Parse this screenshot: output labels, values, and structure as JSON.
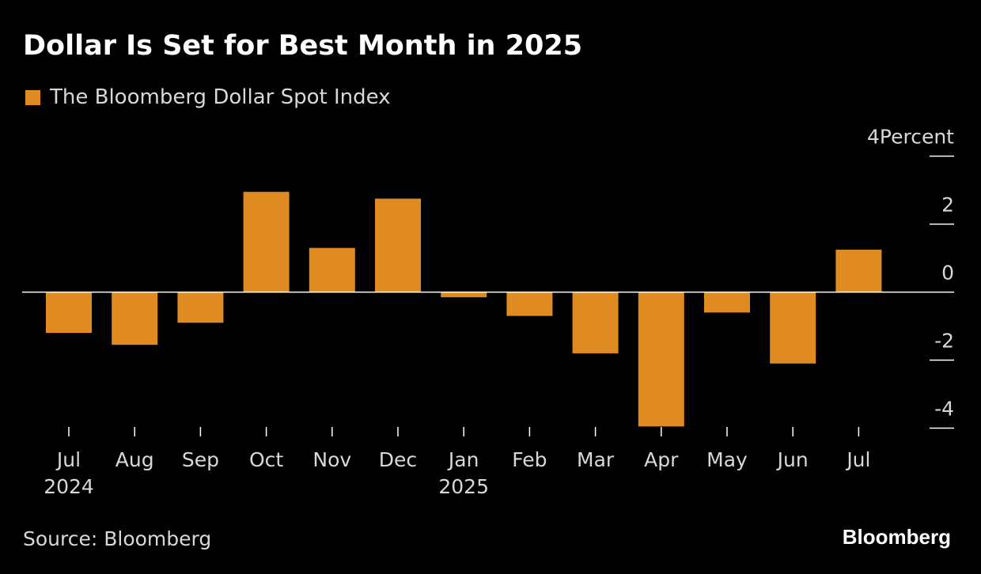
{
  "title": "Dollar Is Set for Best Month in 2025",
  "source": "Source: Bloomberg",
  "brand": "Bloomberg",
  "colors": {
    "bar": "#e08a22",
    "background": "#000000",
    "text": "#ffffff",
    "axis": "#ffffff"
  },
  "chart_data": {
    "type": "bar",
    "legend": [
      "The Bloomberg Dollar Spot Index"
    ],
    "categories": [
      "Jul",
      "Aug",
      "Sep",
      "Oct",
      "Nov",
      "Dec",
      "Jan",
      "Feb",
      "Mar",
      "Apr",
      "May",
      "Jun",
      "Jul"
    ],
    "year_labels": [
      "2024",
      "",
      "",
      "",
      "",
      "",
      "2025",
      "",
      "",
      "",
      "",
      "",
      ""
    ],
    "series": [
      {
        "name": "The Bloomberg Dollar Spot Index",
        "values": [
          -1.2,
          -1.55,
          -0.9,
          2.95,
          1.3,
          2.75,
          -0.15,
          -0.7,
          -1.8,
          -3.95,
          -0.6,
          -2.1,
          1.25
        ]
      }
    ],
    "ylim": [
      -4,
      4
    ],
    "yticks": [
      4,
      2,
      0,
      -2,
      -4
    ],
    "ytick_labels": [
      "4Percent",
      "2",
      "0",
      "-2",
      "-4"
    ],
    "xlabel": "",
    "ylabel": "Percent",
    "grid": false
  }
}
